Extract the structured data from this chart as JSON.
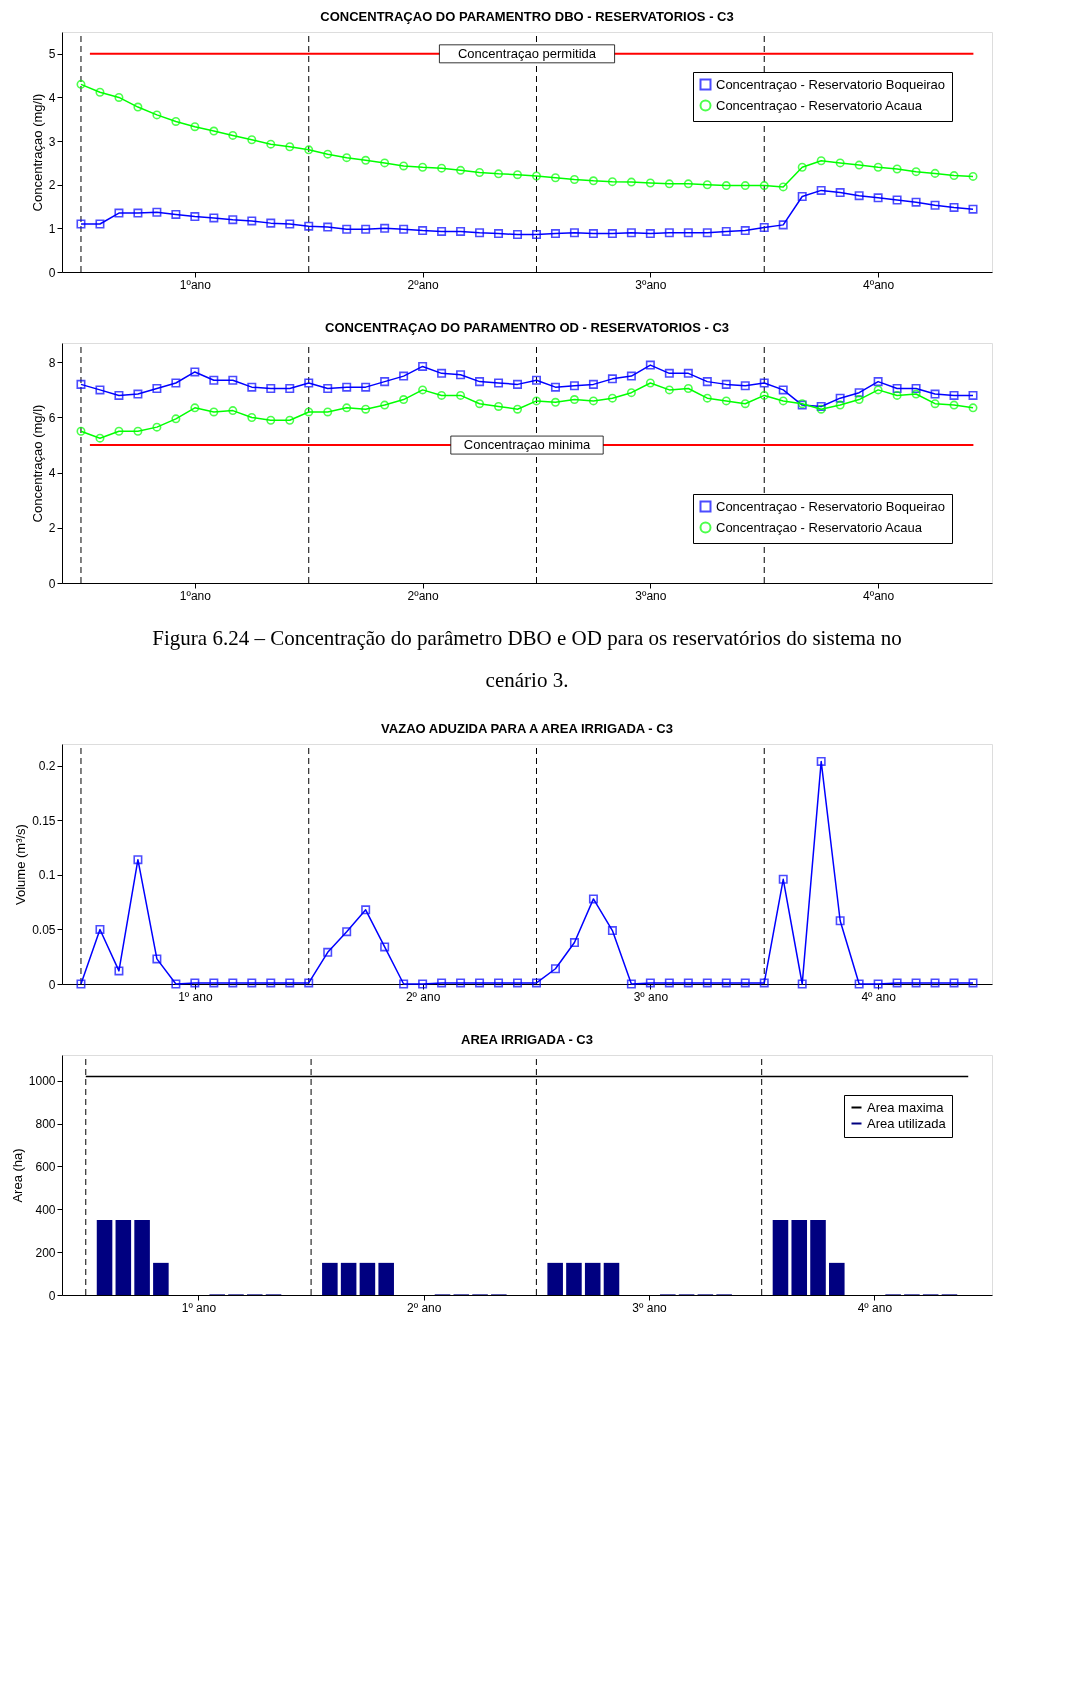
{
  "chart_data": [
    {
      "type": "line",
      "title": "CONCENTRAÇAO DO PARAMENTRO DBO - RESERVATORIOS - C3",
      "ylabel": "Concentraçao (mg/l)",
      "categories": [
        null,
        null,
        null,
        null,
        null,
        null,
        "1ºano",
        null,
        null,
        null,
        null,
        null,
        null,
        null,
        null,
        null,
        null,
        null,
        "2ºano",
        null,
        null,
        null,
        null,
        null,
        null,
        null,
        null,
        null,
        null,
        null,
        "3ºano",
        null,
        null,
        null,
        null,
        null,
        null,
        null,
        null,
        null,
        null,
        null,
        "4ºano",
        null,
        null,
        null,
        null,
        null
      ],
      "ylim": [
        0,
        5.5
      ],
      "yticks": [
        0,
        1,
        2,
        3,
        4,
        5
      ],
      "grid": "x",
      "legend": "top right",
      "line_style": "solid",
      "series": [
        {
          "name": "Concentraçao - Reservatorio Boqueirao",
          "color": "#0000ff",
          "marker": "square",
          "values": [
            1.1,
            1.1,
            1.35,
            1.35,
            1.37,
            1.32,
            1.27,
            1.24,
            1.2,
            1.17,
            1.12,
            1.1,
            1.05,
            1.03,
            0.98,
            0.98,
            1.0,
            0.98,
            0.95,
            0.93,
            0.93,
            0.9,
            0.88,
            0.86,
            0.86,
            0.88,
            0.9,
            0.88,
            0.88,
            0.9,
            0.88,
            0.9,
            0.9,
            0.9,
            0.93,
            0.95,
            1.02,
            1.08,
            1.73,
            1.87,
            1.82,
            1.75,
            1.7,
            1.65,
            1.6,
            1.53,
            1.48,
            1.44
          ]
        },
        {
          "name": "Concentraçao - Reservatorio Acaua",
          "color": "#00ff00",
          "marker": "circle",
          "values": [
            4.3,
            4.12,
            4.0,
            3.78,
            3.6,
            3.45,
            3.33,
            3.23,
            3.13,
            3.03,
            2.93,
            2.87,
            2.8,
            2.7,
            2.62,
            2.56,
            2.5,
            2.43,
            2.4,
            2.38,
            2.33,
            2.28,
            2.25,
            2.23,
            2.2,
            2.16,
            2.12,
            2.09,
            2.07,
            2.06,
            2.04,
            2.02,
            2.02,
            2.0,
            1.98,
            1.98,
            1.98,
            1.95,
            2.4,
            2.55,
            2.5,
            2.45,
            2.4,
            2.36,
            2.3,
            2.26,
            2.21,
            2.19
          ]
        }
      ],
      "ref_lines": [
        {
          "axis": "y",
          "value": 5,
          "label": "Concentraçao permitida",
          "color": "#ff0000",
          "line_style": "solid"
        }
      ]
    },
    {
      "type": "line",
      "title": "CONCENTRAÇAO DO PARAMENTRO OD - RESERVATORIOS - C3",
      "ylabel": "Concentraçao (mg/l)",
      "categories": [
        null,
        null,
        null,
        null,
        null,
        null,
        "1ºano",
        null,
        null,
        null,
        null,
        null,
        null,
        null,
        null,
        null,
        null,
        null,
        "2ºano",
        null,
        null,
        null,
        null,
        null,
        null,
        null,
        null,
        null,
        null,
        null,
        "3ºano",
        null,
        null,
        null,
        null,
        null,
        null,
        null,
        null,
        null,
        null,
        null,
        "4ºano",
        null,
        null,
        null,
        null,
        null
      ],
      "ylim": [
        0,
        8.7
      ],
      "yticks": [
        0,
        2,
        4,
        6,
        8
      ],
      "grid": "x",
      "legend": "bottom right",
      "line_style": "solid",
      "series": [
        {
          "name": "Concentraçao - Reservatorio Boqueirao",
          "color": "#0000ff",
          "marker": "square",
          "values": [
            7.2,
            7.0,
            6.8,
            6.85,
            7.05,
            7.25,
            7.65,
            7.35,
            7.35,
            7.1,
            7.05,
            7.05,
            7.25,
            7.05,
            7.1,
            7.1,
            7.3,
            7.5,
            7.85,
            7.6,
            7.55,
            7.3,
            7.25,
            7.2,
            7.35,
            7.1,
            7.15,
            7.2,
            7.4,
            7.5,
            7.9,
            7.6,
            7.6,
            7.3,
            7.2,
            7.15,
            7.25,
            7.0,
            6.45,
            6.4,
            6.7,
            6.9,
            7.3,
            7.05,
            7.05,
            6.85,
            6.8,
            6.8
          ]
        },
        {
          "name": "Concentraçao - Reservatorio Acaua",
          "color": "#00ff00",
          "marker": "circle",
          "values": [
            5.5,
            5.25,
            5.5,
            5.5,
            5.65,
            5.95,
            6.35,
            6.2,
            6.25,
            6.0,
            5.9,
            5.9,
            6.2,
            6.2,
            6.35,
            6.3,
            6.45,
            6.65,
            7.0,
            6.8,
            6.8,
            6.5,
            6.4,
            6.3,
            6.6,
            6.55,
            6.65,
            6.6,
            6.7,
            6.9,
            7.25,
            7.0,
            7.05,
            6.7,
            6.6,
            6.5,
            6.8,
            6.6,
            6.5,
            6.3,
            6.45,
            6.65,
            7.0,
            6.8,
            6.85,
            6.5,
            6.45,
            6.35
          ]
        }
      ],
      "ref_lines": [
        {
          "axis": "y",
          "value": 5,
          "label": "Concentraçao minima",
          "color": "#ff0000",
          "line_style": "solid"
        }
      ],
      "annotations": [
        "Figura 6.24 – Concentração do parâmetro DBO e OD para os reservatórios do sistema no cenário 3."
      ]
    },
    {
      "type": "line",
      "title": "VAZAO ADUZIDA PARA A AREA IRRIGADA - C3",
      "ylabel": "Volume (m³/s)",
      "categories": [
        null,
        null,
        null,
        null,
        null,
        null,
        "1º ano",
        null,
        null,
        null,
        null,
        null,
        null,
        null,
        null,
        null,
        null,
        null,
        "2º ano",
        null,
        null,
        null,
        null,
        null,
        null,
        null,
        null,
        null,
        null,
        null,
        "3º ano",
        null,
        null,
        null,
        null,
        null,
        null,
        null,
        null,
        null,
        null,
        null,
        "4º ano",
        null,
        null,
        null,
        null,
        null
      ],
      "ylim": [
        0,
        0.22
      ],
      "yticks": [
        0,
        0.05,
        0.1,
        0.15,
        0.2
      ],
      "grid": "x",
      "line_style": "solid",
      "series": [
        {
          "color": "#0000ff",
          "marker": "square",
          "values": [
            0,
            0.05,
            0.012,
            0.114,
            0.023,
            0,
            0.001,
            0.001,
            0.001,
            0.001,
            0.001,
            0.001,
            0.001,
            0.029,
            0.048,
            0.068,
            0.034,
            0,
            0,
            0.001,
            0.001,
            0.001,
            0.001,
            0.001,
            0.001,
            0.014,
            0.038,
            0.078,
            0.049,
            0,
            0.001,
            0.001,
            0.001,
            0.001,
            0.001,
            0.001,
            0.001,
            0.096,
            0,
            0.204,
            0.058,
            0,
            0,
            0.001,
            0.001,
            0.001,
            0.001,
            0.001
          ]
        }
      ]
    },
    {
      "type": "bar",
      "title": "AREA IRRIGADA - C3",
      "ylabel": "Area (ha)",
      "categories": [
        null,
        null,
        null,
        null,
        null,
        null,
        "1º ano",
        null,
        null,
        null,
        null,
        null,
        null,
        null,
        null,
        null,
        null,
        null,
        "2º ano",
        null,
        null,
        null,
        null,
        null,
        null,
        null,
        null,
        null,
        null,
        null,
        "3º ano",
        null,
        null,
        null,
        null,
        null,
        null,
        null,
        null,
        null,
        null,
        null,
        "4º ano",
        null,
        null,
        null,
        null,
        null
      ],
      "ylim": [
        0,
        1120
      ],
      "yticks": [
        0,
        200,
        400,
        600,
        800,
        1000
      ],
      "grid": "x",
      "legend": "top right",
      "series": [
        {
          "name": "Area maxima",
          "type": "line",
          "color": "#000000",
          "marker": "none",
          "values": [
            1020,
            1020,
            1020,
            1020,
            1020,
            1020,
            1020,
            1020,
            1020,
            1020,
            1020,
            1020,
            1020,
            1020,
            1020,
            1020,
            1020,
            1020,
            1020,
            1020,
            1020,
            1020,
            1020,
            1020,
            1020,
            1020,
            1020,
            1020,
            1020,
            1020,
            1020,
            1020,
            1020,
            1020,
            1020,
            1020,
            1020,
            1020,
            1020,
            1020,
            1020,
            1020,
            1020,
            1020,
            1020,
            1020,
            1020,
            1020
          ]
        },
        {
          "name": "Area utilizada",
          "color": "#000080",
          "values": [
            0,
            350,
            350,
            350,
            150,
            0,
            0,
            3,
            3,
            3,
            3,
            0,
            0,
            150,
            150,
            150,
            150,
            0,
            0,
            3,
            3,
            3,
            3,
            0,
            0,
            150,
            150,
            150,
            150,
            0,
            0,
            3,
            3,
            3,
            3,
            0,
            0,
            350,
            350,
            350,
            150,
            0,
            0,
            3,
            3,
            3,
            3,
            0
          ]
        }
      ]
    }
  ]
}
